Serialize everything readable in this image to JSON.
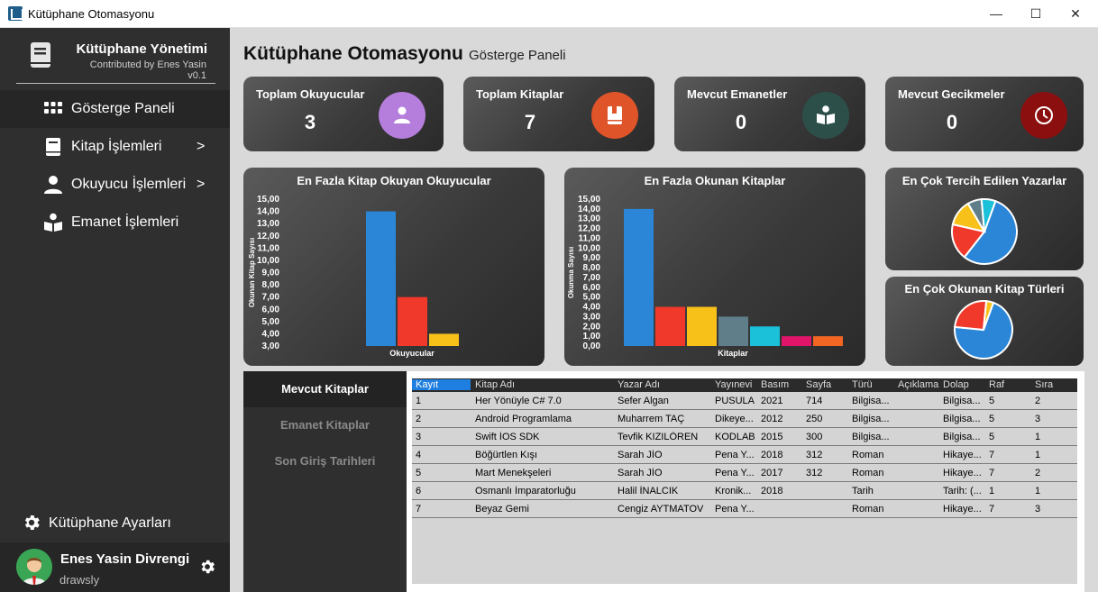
{
  "window": {
    "title": "Kütüphane Otomasyonu",
    "minimize": "—",
    "maximize": "☐",
    "close": "✕"
  },
  "sidebar": {
    "brand_title": "Kütüphane Yönetimi",
    "brand_sub": "Contributed by Enes Yasin v0.1",
    "items": [
      {
        "label": "Gösterge Paneli",
        "icon": "grid-icon",
        "arrow": ""
      },
      {
        "label": "Kitap İşlemleri",
        "icon": "book-icon",
        "arrow": ">"
      },
      {
        "label": "Okuyucu İşlemleri",
        "icon": "user-icon",
        "arrow": ">"
      },
      {
        "label": "Emanet İşlemleri",
        "icon": "reader-icon",
        "arrow": ""
      }
    ],
    "settings_label": "Kütüphane Ayarları",
    "user_name": "Enes Yasin Divrengi",
    "user_handle": "drawsly"
  },
  "header": {
    "title": "Kütüphane Otomasyonu",
    "subtitle": "Gösterge Paneli"
  },
  "stats": [
    {
      "label": "Toplam Okuyucular",
      "value": "3",
      "color": "#b57edc",
      "icon": "user-icon"
    },
    {
      "label": "Toplam Kitaplar",
      "value": "7",
      "color": "#e0542a",
      "icon": "book-icon"
    },
    {
      "label": "Mevcut Emanetler",
      "value": "0",
      "color": "#2d4f4a",
      "icon": "reader-icon"
    },
    {
      "label": "Mevcut Gecikmeler",
      "value": "0",
      "color": "#8b0f0f",
      "icon": "clock-icon"
    }
  ],
  "chart_data": [
    {
      "type": "bar",
      "title": "En Fazla Kitap Okuyan Okuyucular",
      "xlabel": "Okuyucular",
      "ylabel": "Okunan Kitap Sayısı",
      "ylim": [
        3,
        15
      ],
      "ticks": [
        "15,00",
        "14,00",
        "13,00",
        "12,00",
        "11,00",
        "10,00",
        "9,00",
        "8,00",
        "7,00",
        "6,00",
        "5,00",
        "4,00",
        "3,00"
      ],
      "values": [
        14,
        7,
        4
      ],
      "colors": [
        "#2b86d8",
        "#f0392b",
        "#f7c11a"
      ]
    },
    {
      "type": "bar",
      "title": "En Fazla Okunan Kitaplar",
      "xlabel": "Kitaplar",
      "ylabel": "Okunma Sayısı",
      "ylim": [
        0,
        15
      ],
      "ticks": [
        "15,00",
        "14,00",
        "13,00",
        "12,00",
        "11,00",
        "10,00",
        "9,00",
        "8,00",
        "7,00",
        "6,00",
        "5,00",
        "4,00",
        "3,00",
        "2,00",
        "1,00",
        "0,00"
      ],
      "values": [
        14,
        4,
        4,
        3,
        2,
        1,
        1
      ],
      "colors": [
        "#2b86d8",
        "#f0392b",
        "#f7c11a",
        "#5f7e8a",
        "#1bc0d9",
        "#e0156a",
        "#f26522"
      ]
    },
    {
      "type": "pie",
      "title": "En Çok Tercih Edilen Yazarlar",
      "values": [
        55,
        18,
        13,
        7,
        7
      ],
      "colors": [
        "#2b86d8",
        "#f0392b",
        "#f7c11a",
        "#5f7e8a",
        "#1bc0d9"
      ]
    },
    {
      "type": "pie",
      "title": "En Çok Okunan Kitap Türleri",
      "values": [
        71,
        25,
        4
      ],
      "colors": [
        "#2b86d8",
        "#f0392b",
        "#f7c11a"
      ]
    }
  ],
  "tabs": [
    "Mevcut Kitaplar",
    "Emanet Kitaplar",
    "Son Giriş Tarihleri"
  ],
  "table": {
    "columns": [
      "Kayıt",
      "Kitap Adı",
      "Yazar Adı",
      "Yayınevi",
      "Basım",
      "Sayfa",
      "Türü",
      "Açıklama",
      "Dolap",
      "Raf",
      "Sıra"
    ],
    "rows": [
      [
        "1",
        "Her Yönüyle C# 7.0",
        "Sefer Algan",
        "PUSULA",
        "2021",
        "714",
        "Bilgisa...",
        "",
        "Bilgisa...",
        "5",
        "2"
      ],
      [
        "2",
        "Android Programlama",
        "Muharrem TAÇ",
        "Dikeye...",
        "2012",
        "250",
        "Bilgisa...",
        "",
        "Bilgisa...",
        "5",
        "3"
      ],
      [
        "3",
        "Swift İOS SDK",
        "Tevfik KIZILÖREN",
        "KODLAB",
        "2015",
        "300",
        "Bilgisa...",
        "",
        "Bilgisa...",
        "5",
        "1"
      ],
      [
        "4",
        "Böğürtlen Kışı",
        "Sarah JİO",
        "Pena Y...",
        "2018",
        "312",
        "Roman",
        "",
        "Hikaye...",
        "7",
        "1"
      ],
      [
        "5",
        "Mart Menekşeleri",
        "Sarah JİO",
        "Pena Y...",
        "2017",
        "312",
        "Roman",
        "",
        "Hikaye...",
        "7",
        "2"
      ],
      [
        "6",
        "Osmanlı İmparatorluğu",
        "Halil İNALCIK",
        "Kronik...",
        "2018",
        "",
        "Tarih",
        "",
        "Tarih: (...",
        "1",
        "1"
      ],
      [
        "7",
        "Beyaz Gemi",
        "Cengiz AYTMATOV",
        "Pena Y...",
        "",
        "",
        "Roman",
        "",
        "Hikaye...",
        "7",
        "3"
      ]
    ]
  }
}
